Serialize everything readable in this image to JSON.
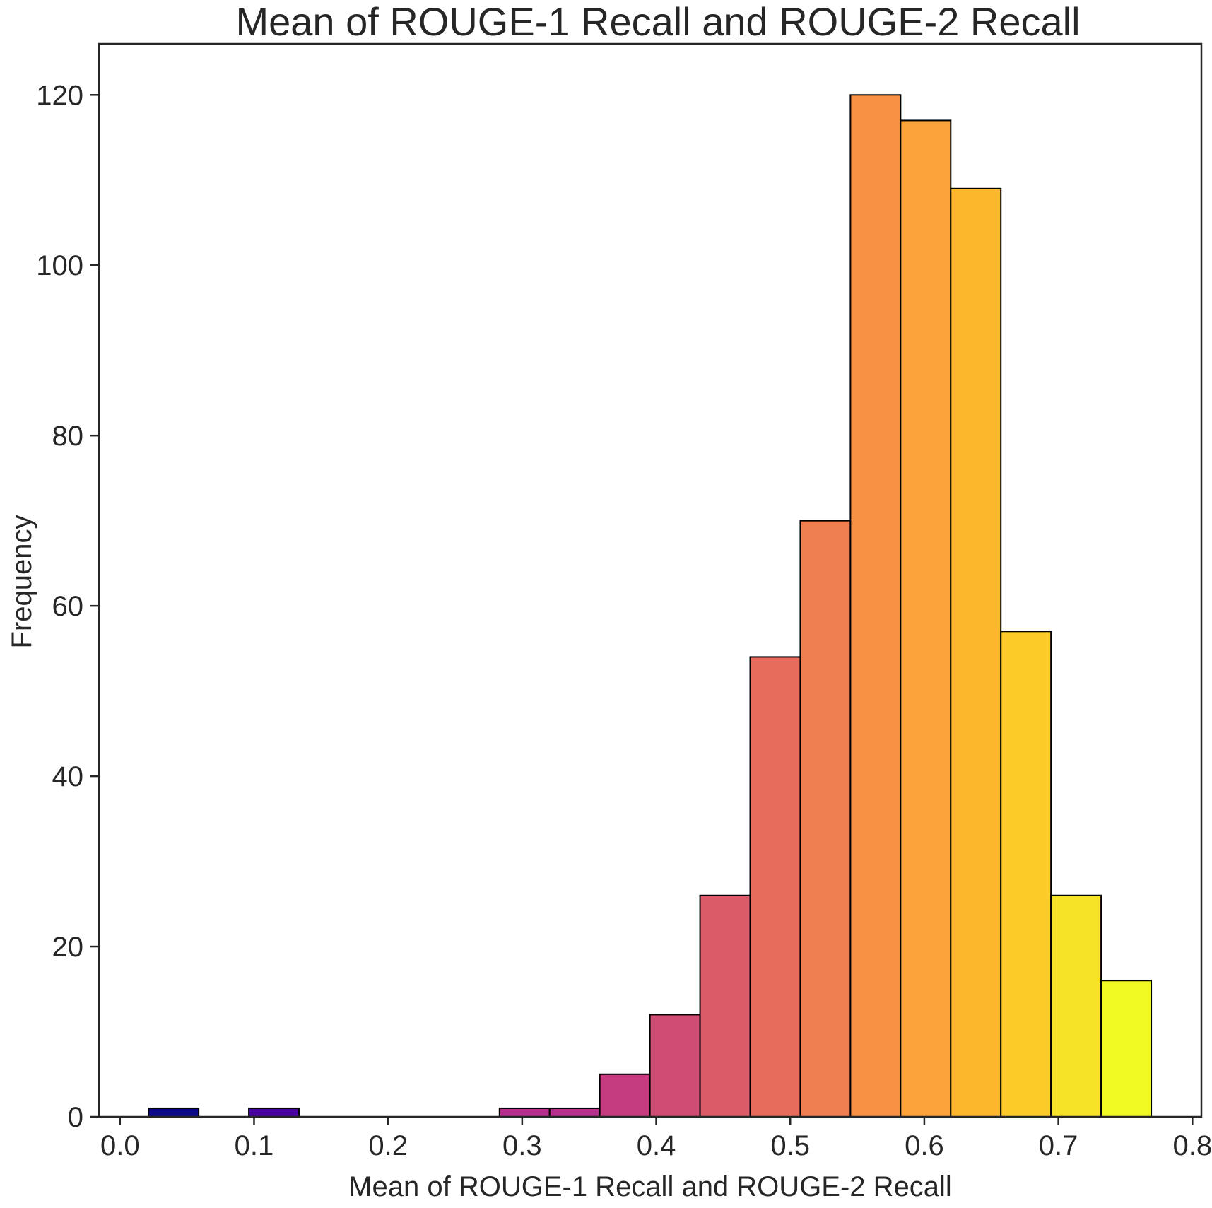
{
  "chart_data": {
    "type": "bar",
    "title": "Mean of ROUGE-1 Recall and ROUGE-2 Recall",
    "xlabel": "Mean of ROUGE-1 Recall and ROUGE-2 Recall",
    "ylabel": "Frequency",
    "xlim": [
      -0.0157,
      0.8067
    ],
    "ylim": [
      0,
      126
    ],
    "x_ticks": [
      0.0,
      0.1,
      0.2,
      0.3,
      0.4,
      0.5,
      0.6,
      0.7,
      0.8
    ],
    "x_tick_labels": [
      "0.0",
      "0.1",
      "0.2",
      "0.3",
      "0.4",
      "0.5",
      "0.6",
      "0.7",
      "0.8"
    ],
    "y_ticks": [
      0,
      20,
      40,
      60,
      80,
      100,
      120
    ],
    "y_tick_labels": [
      "0",
      "20",
      "40",
      "60",
      "80",
      "100",
      "120"
    ],
    "grid": false,
    "bins": [
      {
        "x0": 0.0213,
        "x1": 0.0587,
        "count": 1,
        "color": "#0d0887"
      },
      {
        "x0": 0.0587,
        "x1": 0.0961,
        "count": 0,
        "color": "#2c0594"
      },
      {
        "x0": 0.0961,
        "x1": 0.1335,
        "count": 1,
        "color": "#4903a0"
      },
      {
        "x0": 0.1335,
        "x1": 0.1709,
        "count": 0,
        "color": "#6300a7"
      },
      {
        "x0": 0.1709,
        "x1": 0.2083,
        "count": 0,
        "color": "#7a02a8"
      },
      {
        "x0": 0.2083,
        "x1": 0.2457,
        "count": 0,
        "color": "#9010a3"
      },
      {
        "x0": 0.2457,
        "x1": 0.2831,
        "count": 0,
        "color": "#a31e9a"
      },
      {
        "x0": 0.2831,
        "x1": 0.3205,
        "count": 1,
        "color": "#b42e8d"
      },
      {
        "x0": 0.3205,
        "x1": 0.3579,
        "count": 1,
        "color": "#b52f8c"
      },
      {
        "x0": 0.3579,
        "x1": 0.3953,
        "count": 5,
        "color": "#c33d80"
      },
      {
        "x0": 0.3953,
        "x1": 0.4327,
        "count": 12,
        "color": "#cf4c73"
      },
      {
        "x0": 0.4327,
        "x1": 0.4701,
        "count": 26,
        "color": "#db5c68"
      },
      {
        "x0": 0.4701,
        "x1": 0.5075,
        "count": 54,
        "color": "#e66c5c"
      },
      {
        "x0": 0.5075,
        "x1": 0.5449,
        "count": 70,
        "color": "#ef7e50"
      },
      {
        "x0": 0.5449,
        "x1": 0.5823,
        "count": 120,
        "color": "#f89143"
      },
      {
        "x0": 0.5823,
        "x1": 0.6197,
        "count": 117,
        "color": "#fba238"
      },
      {
        "x0": 0.6197,
        "x1": 0.6571,
        "count": 109,
        "color": "#fdb72d"
      },
      {
        "x0": 0.6571,
        "x1": 0.6945,
        "count": 57,
        "color": "#fbcc27"
      },
      {
        "x0": 0.6945,
        "x1": 0.7319,
        "count": 26,
        "color": "#f6e327"
      },
      {
        "x0": 0.7319,
        "x1": 0.7693,
        "count": 16,
        "color": "#f0f921"
      }
    ]
  }
}
